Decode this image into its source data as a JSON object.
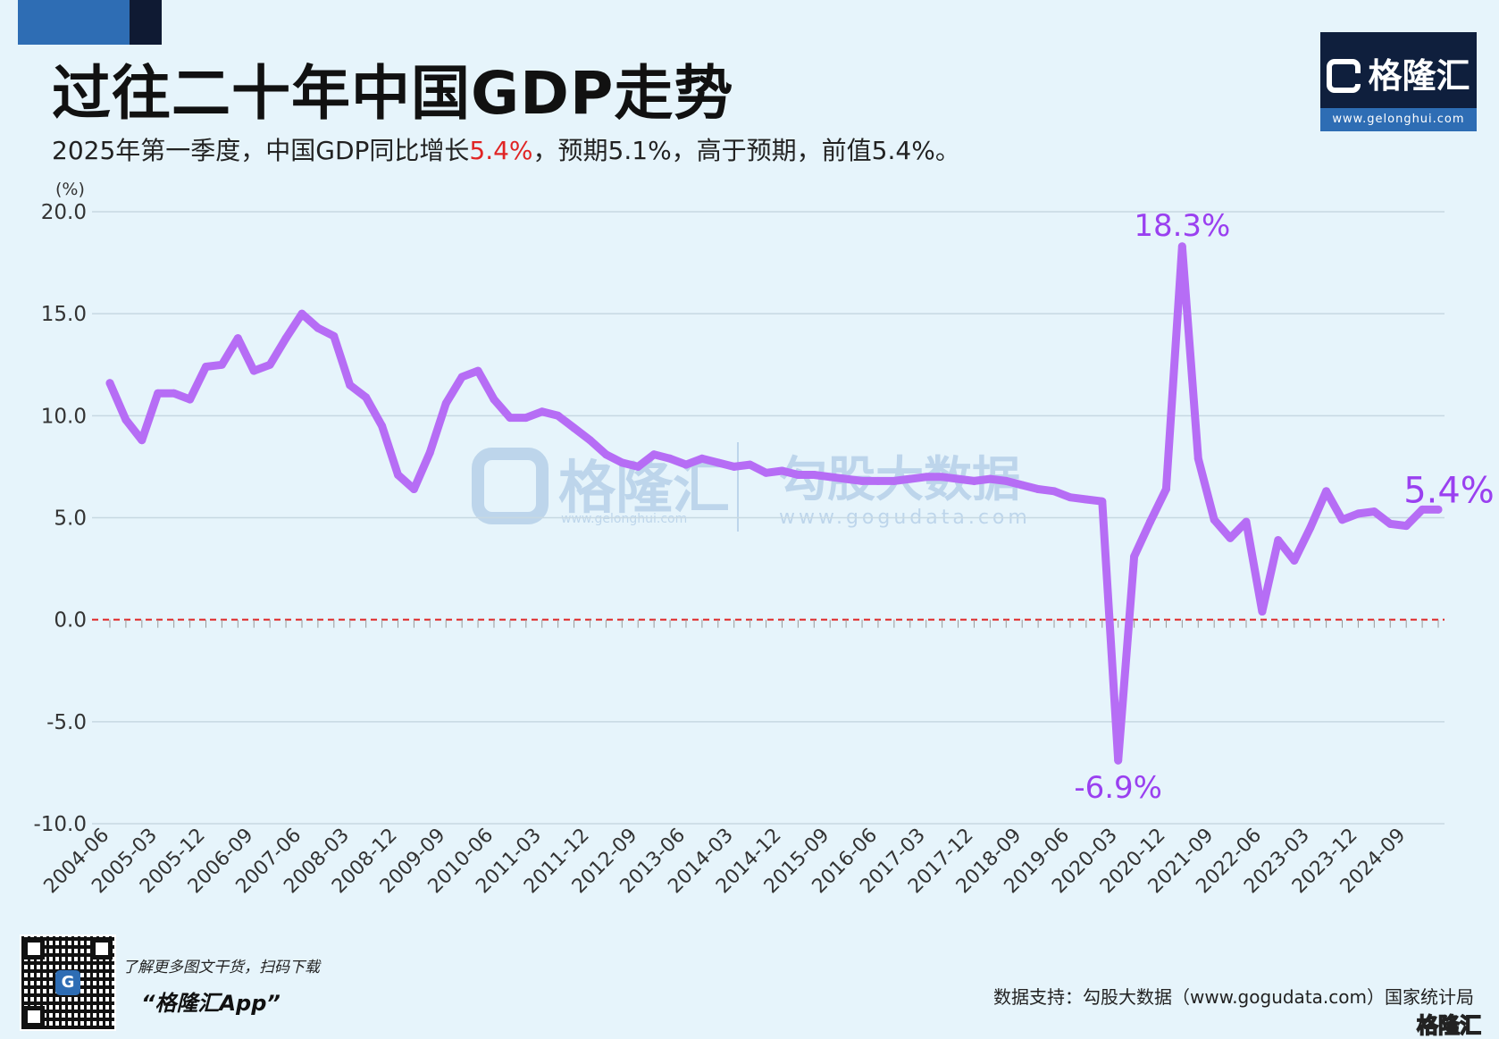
{
  "header": {
    "title": "过往二十年中国GDP走势",
    "subtitle_prefix": "2025年第一季度，中国GDP同比增长",
    "subtitle_highlight": "5.4%",
    "subtitle_suffix": "，预期5.1%，高于预期，前值5.4%。"
  },
  "brand": {
    "logo_name": "格隆汇",
    "logo_url": "www.gelonghui.com",
    "watermark_name": "格隆汇",
    "watermark_url": "www.gelonghui.com",
    "watermark2_name": "勾股大数据",
    "watermark2_url": "www.gogudata.com"
  },
  "footer": {
    "qr_label": "G",
    "promo_text": "了解更多图文干货，扫码下载",
    "app_name": "“格隆汇App”",
    "source": "数据支持：勾股大数据（www.gogudata.com）国家统计局",
    "corner_logo": "格隆汇"
  },
  "colors": {
    "line": "#b66df5",
    "label": "#9a40f0",
    "zero_line": "#e02424",
    "grid": "#c7d8e2",
    "axis_text": "#333333"
  },
  "chart_data": {
    "type": "line",
    "unit_label": "(%)",
    "ylim": [
      -10,
      20
    ],
    "y_ticks": [
      "20.0",
      "15.0",
      "10.0",
      "5.0",
      "0.0",
      "-5.0",
      "-10.0"
    ],
    "y_tick_values": [
      20,
      15,
      10,
      5,
      0,
      -5,
      -10
    ],
    "grid": true,
    "x_tick_labels": [
      "2004-06",
      "2005-03",
      "2005-12",
      "2006-09",
      "2007-06",
      "2008-03",
      "2008-12",
      "2009-09",
      "2010-06",
      "2011-03",
      "2011-12",
      "2012-09",
      "2013-06",
      "2014-03",
      "2014-12",
      "2015-09",
      "2016-06",
      "2017-03",
      "2017-12",
      "2018-09",
      "2019-06",
      "2020-03",
      "2020-12",
      "2021-09",
      "2022-06",
      "2023-03",
      "2023-12",
      "2024-09"
    ],
    "x": [
      "2004-06",
      "2004-09",
      "2004-12",
      "2005-03",
      "2005-06",
      "2005-09",
      "2005-12",
      "2006-03",
      "2006-06",
      "2006-09",
      "2006-12",
      "2007-03",
      "2007-06",
      "2007-09",
      "2007-12",
      "2008-03",
      "2008-06",
      "2008-09",
      "2008-12",
      "2009-03",
      "2009-06",
      "2009-09",
      "2009-12",
      "2010-03",
      "2010-06",
      "2010-09",
      "2010-12",
      "2011-03",
      "2011-06",
      "2011-09",
      "2011-12",
      "2012-03",
      "2012-06",
      "2012-09",
      "2012-12",
      "2013-03",
      "2013-06",
      "2013-09",
      "2013-12",
      "2014-03",
      "2014-06",
      "2014-09",
      "2014-12",
      "2015-03",
      "2015-06",
      "2015-09",
      "2015-12",
      "2016-03",
      "2016-06",
      "2016-09",
      "2016-12",
      "2017-03",
      "2017-06",
      "2017-09",
      "2017-12",
      "2018-03",
      "2018-06",
      "2018-09",
      "2018-12",
      "2019-03",
      "2019-06",
      "2019-09",
      "2019-12",
      "2020-03",
      "2020-06",
      "2020-09",
      "2020-12",
      "2021-03",
      "2021-06",
      "2021-09",
      "2021-12",
      "2022-03",
      "2022-06",
      "2022-09",
      "2022-12",
      "2023-03",
      "2023-06",
      "2023-09",
      "2023-12",
      "2024-03",
      "2024-06",
      "2024-09",
      "2024-12",
      "2025-03"
    ],
    "series": [
      {
        "name": "",
        "values": [
          11.6,
          9.8,
          8.8,
          11.1,
          11.1,
          10.8,
          12.4,
          12.5,
          13.8,
          12.2,
          12.5,
          13.8,
          15.0,
          14.3,
          13.9,
          11.5,
          10.9,
          9.5,
          7.1,
          6.4,
          8.2,
          10.6,
          11.9,
          12.2,
          10.8,
          9.9,
          9.9,
          10.2,
          10.0,
          9.4,
          8.8,
          8.1,
          7.7,
          7.5,
          8.1,
          7.9,
          7.6,
          7.9,
          7.7,
          7.5,
          7.6,
          7.2,
          7.3,
          7.1,
          7.1,
          7.0,
          6.9,
          6.8,
          6.8,
          6.8,
          6.9,
          7.0,
          7.0,
          6.9,
          6.8,
          6.9,
          6.8,
          6.6,
          6.4,
          6.3,
          6.0,
          5.9,
          5.8,
          -6.9,
          3.1,
          4.8,
          6.4,
          18.3,
          7.9,
          4.9,
          4.0,
          4.8,
          0.4,
          3.9,
          2.9,
          4.5,
          6.3,
          4.9,
          5.2,
          5.3,
          4.7,
          4.6,
          5.4,
          5.4
        ]
      }
    ],
    "annotations": [
      {
        "x": "2021-03",
        "text": "18.3%"
      },
      {
        "x": "2020-03",
        "text": "-6.9%"
      },
      {
        "x": "2025-03",
        "text": "5.4%"
      }
    ],
    "reference_line": 0
  }
}
